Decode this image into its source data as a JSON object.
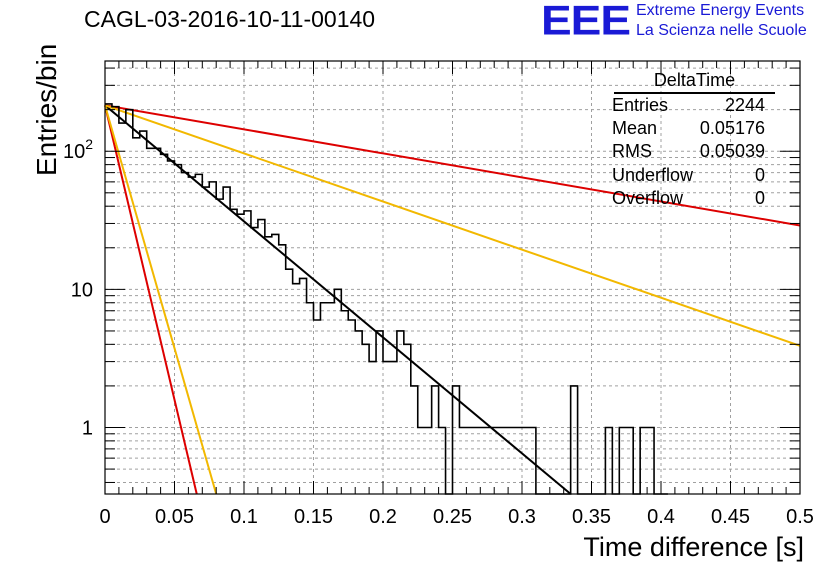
{
  "chart_data": {
    "type": "histogram",
    "title": "CAGL-03-2016-10-11-00140",
    "xlabel": "Time difference [s]",
    "ylabel": "Entries/bin",
    "xlim": [
      0,
      0.5
    ],
    "ylim": [
      0.33,
      450
    ],
    "y_scale": "log",
    "grid": true,
    "x_ticks": [
      "0",
      "0.05",
      "0.1",
      "0.15",
      "0.2",
      "0.25",
      "0.3",
      "0.35",
      "0.4",
      "0.45",
      "0.5"
    ],
    "y_ticks": [
      "1",
      "10",
      "10^2"
    ],
    "bin_width": 0.005,
    "bins": [
      [
        0.0,
        220
      ],
      [
        0.005,
        210
      ],
      [
        0.01,
        160
      ],
      [
        0.015,
        200
      ],
      [
        0.02,
        125
      ],
      [
        0.025,
        140
      ],
      [
        0.03,
        105
      ],
      [
        0.035,
        105
      ],
      [
        0.04,
        95
      ],
      [
        0.045,
        85
      ],
      [
        0.05,
        80
      ],
      [
        0.055,
        70
      ],
      [
        0.06,
        65
      ],
      [
        0.065,
        68
      ],
      [
        0.07,
        55
      ],
      [
        0.075,
        60
      ],
      [
        0.08,
        45
      ],
      [
        0.085,
        55
      ],
      [
        0.09,
        38
      ],
      [
        0.095,
        35
      ],
      [
        0.1,
        37
      ],
      [
        0.105,
        28
      ],
      [
        0.11,
        32
      ],
      [
        0.115,
        24
      ],
      [
        0.12,
        25
      ],
      [
        0.125,
        21
      ],
      [
        0.13,
        14
      ],
      [
        0.135,
        11
      ],
      [
        0.14,
        12
      ],
      [
        0.145,
        8
      ],
      [
        0.15,
        6
      ],
      [
        0.155,
        8
      ],
      [
        0.16,
        8
      ],
      [
        0.165,
        10
      ],
      [
        0.17,
        7
      ],
      [
        0.175,
        6
      ],
      [
        0.18,
        5
      ],
      [
        0.185,
        4
      ],
      [
        0.19,
        3
      ],
      [
        0.195,
        5
      ],
      [
        0.2,
        3
      ],
      [
        0.205,
        3
      ],
      [
        0.21,
        5
      ],
      [
        0.215,
        4
      ],
      [
        0.22,
        2
      ],
      [
        0.225,
        1
      ],
      [
        0.23,
        1
      ],
      [
        0.235,
        2
      ],
      [
        0.24,
        1
      ],
      [
        0.245,
        0
      ],
      [
        0.25,
        2
      ],
      [
        0.255,
        1
      ],
      [
        0.26,
        1
      ],
      [
        0.265,
        1
      ],
      [
        0.27,
        1
      ],
      [
        0.275,
        1
      ],
      [
        0.28,
        1
      ],
      [
        0.285,
        1
      ],
      [
        0.29,
        1
      ],
      [
        0.295,
        1
      ],
      [
        0.3,
        1
      ],
      [
        0.305,
        1
      ],
      [
        0.31,
        0
      ],
      [
        0.315,
        0
      ],
      [
        0.32,
        0
      ],
      [
        0.325,
        0
      ],
      [
        0.33,
        0
      ],
      [
        0.335,
        2
      ],
      [
        0.34,
        0
      ],
      [
        0.345,
        0
      ],
      [
        0.35,
        0
      ],
      [
        0.355,
        0
      ],
      [
        0.36,
        1
      ],
      [
        0.365,
        0
      ],
      [
        0.37,
        1
      ],
      [
        0.375,
        1
      ],
      [
        0.38,
        0
      ],
      [
        0.385,
        1
      ],
      [
        0.39,
        1
      ],
      [
        0.395,
        0
      ],
      [
        0.4,
        0
      ]
    ],
    "fit_lines": [
      {
        "color": "#000000",
        "x": [
          0.0,
          0.335
        ],
        "y": [
          215,
          0.33
        ]
      },
      {
        "color": "#dd0000",
        "x": [
          0.0,
          0.5
        ],
        "y": [
          215,
          29
        ]
      },
      {
        "color": "#f2b800",
        "x": [
          0.0,
          0.5
        ],
        "y": [
          215,
          3.9
        ]
      },
      {
        "color": "#dd0000",
        "x": [
          0.0,
          0.066
        ],
        "y": [
          215,
          0.33
        ]
      },
      {
        "color": "#f2b800",
        "x": [
          0.0,
          0.08
        ],
        "y": [
          215,
          0.33
        ]
      }
    ]
  },
  "stats_box": {
    "header": "DeltaTime",
    "rows": [
      {
        "label": "Entries",
        "value": "2244"
      },
      {
        "label": "Mean",
        "value": "0.05176"
      },
      {
        "label": "RMS",
        "value": "0.05039"
      },
      {
        "label": "Underflow",
        "value": "0"
      },
      {
        "label": "Overflow",
        "value": "0"
      }
    ]
  },
  "logo": {
    "mark": "EEE",
    "line1": "Extreme Energy Events",
    "line2": "La Scienza nelle Scuole"
  }
}
